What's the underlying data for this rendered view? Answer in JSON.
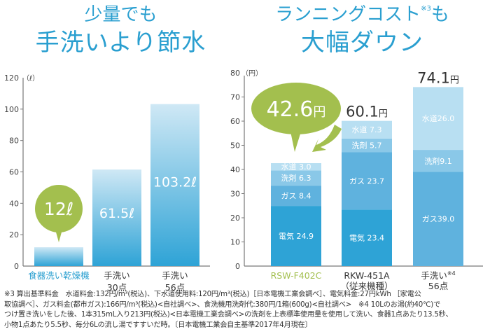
{
  "left_title": {
    "line1": "少量でも",
    "line2": "手洗いより節水"
  },
  "right_title": {
    "line1": "ランニングコスト",
    "sup": "※3",
    "line1_end": "も",
    "line2": "大幅ダウン"
  },
  "chart_data": [
    {
      "type": "bar",
      "title": "少量でも手洗いより節水",
      "ylabel": "(ℓ)",
      "unit_label": "（ℓ）",
      "ylim": [
        0,
        120
      ],
      "yticks": [
        0,
        20,
        40,
        60,
        80,
        100,
        120
      ],
      "categories": [
        {
          "lines": [
            "食器洗い乾燥機"
          ],
          "highlight": true
        },
        {
          "lines": [
            "手洗い",
            "30点"
          ],
          "highlight": false
        },
        {
          "lines": [
            "手洗い",
            "56点"
          ],
          "highlight": false
        }
      ],
      "values": [
        12,
        61.5,
        103.2
      ],
      "value_labels": [
        "12ℓ",
        "61.5ℓ",
        "103.2ℓ"
      ],
      "callout": {
        "bar_index": 0,
        "text": "12ℓ",
        "color": "#a3bf4e"
      },
      "grid": false
    },
    {
      "type": "stacked-bar",
      "title": "ランニングコスト大幅ダウン",
      "ylabel": "(円)",
      "unit_label": "（円）",
      "ylim": [
        0,
        80
      ],
      "yticks": [
        0,
        10,
        20,
        30,
        40,
        50,
        60,
        70,
        80
      ],
      "categories": [
        {
          "lines": [
            "RSW-F402C"
          ],
          "highlight": true
        },
        {
          "lines": [
            "RKW-451A",
            "（従来機種）"
          ],
          "highlight": false
        },
        {
          "lines": [
            "手洗い",
            "56点"
          ],
          "sup": "※4",
          "highlight": false
        }
      ],
      "series": [
        {
          "name": "電気",
          "values": [
            24.9,
            23.4,
            0
          ],
          "color": "#2ea3d6"
        },
        {
          "name": "ガス",
          "values": [
            8.4,
            23.7,
            39.0
          ],
          "color": "#5fb2de"
        },
        {
          "name": "洗剤",
          "values": [
            6.3,
            5.7,
            9.1
          ],
          "color": "#8ac8e8"
        },
        {
          "name": "水道",
          "values": [
            3.0,
            7.3,
            26.0
          ],
          "color": "#b8dff2"
        }
      ],
      "segment_labels": [
        [
          "電気 24.9",
          "ガス 8.4",
          "洗剤 6.3",
          "水道 3.0"
        ],
        [
          "電気 23.4",
          "ガス 23.7",
          "洗剤 5.7",
          "水道 7.3"
        ],
        [
          "",
          "ガス39.0",
          "洗剤9.1",
          "水道26.0"
        ]
      ],
      "totals": [
        42.6,
        60.1,
        74.1
      ],
      "total_labels": [
        {
          "num": "42.6",
          "unit": "円"
        },
        {
          "num": "60.1",
          "unit": "円"
        },
        {
          "num": "74.1",
          "unit": "円"
        }
      ],
      "callout": {
        "bar_index": 0,
        "num": "42.6",
        "unit": "円",
        "color": "#a3bf4e"
      },
      "grid": false
    }
  ],
  "colors": {
    "title": "#2a9fd0",
    "highlight_left": "#2a9fd0",
    "highlight_right": "#a3bf4e",
    "callout": "#a3bf4e",
    "axis": "#777777"
  },
  "footnote": "※3 算出基準料金　水道料金:132円/m³(税込)、下水道使用料:120円/m³(税込)［日本電機工業会調べ］、電気料金:27円kWh ［家電公\n取協調べ］、ガス料金(都市ガス):166円/m³(税込)<自社調べ>、食洗機用洗剤代:380円/1箱(600g)<自社調べ>　※4 10Lのお湯(約40℃)で\nつけ置き洗いをした後、1本315mL入り213円(税込)<日本電機工業会調べ>の洗剤を上表標準使用量を使用して洗い、食器1点あたり13.5秒、\n小物1点あたり5.5秒、毎分6Lの流し湯ですすいだ時。〔日本電機工業会自主基準2017年4月現在〕"
}
